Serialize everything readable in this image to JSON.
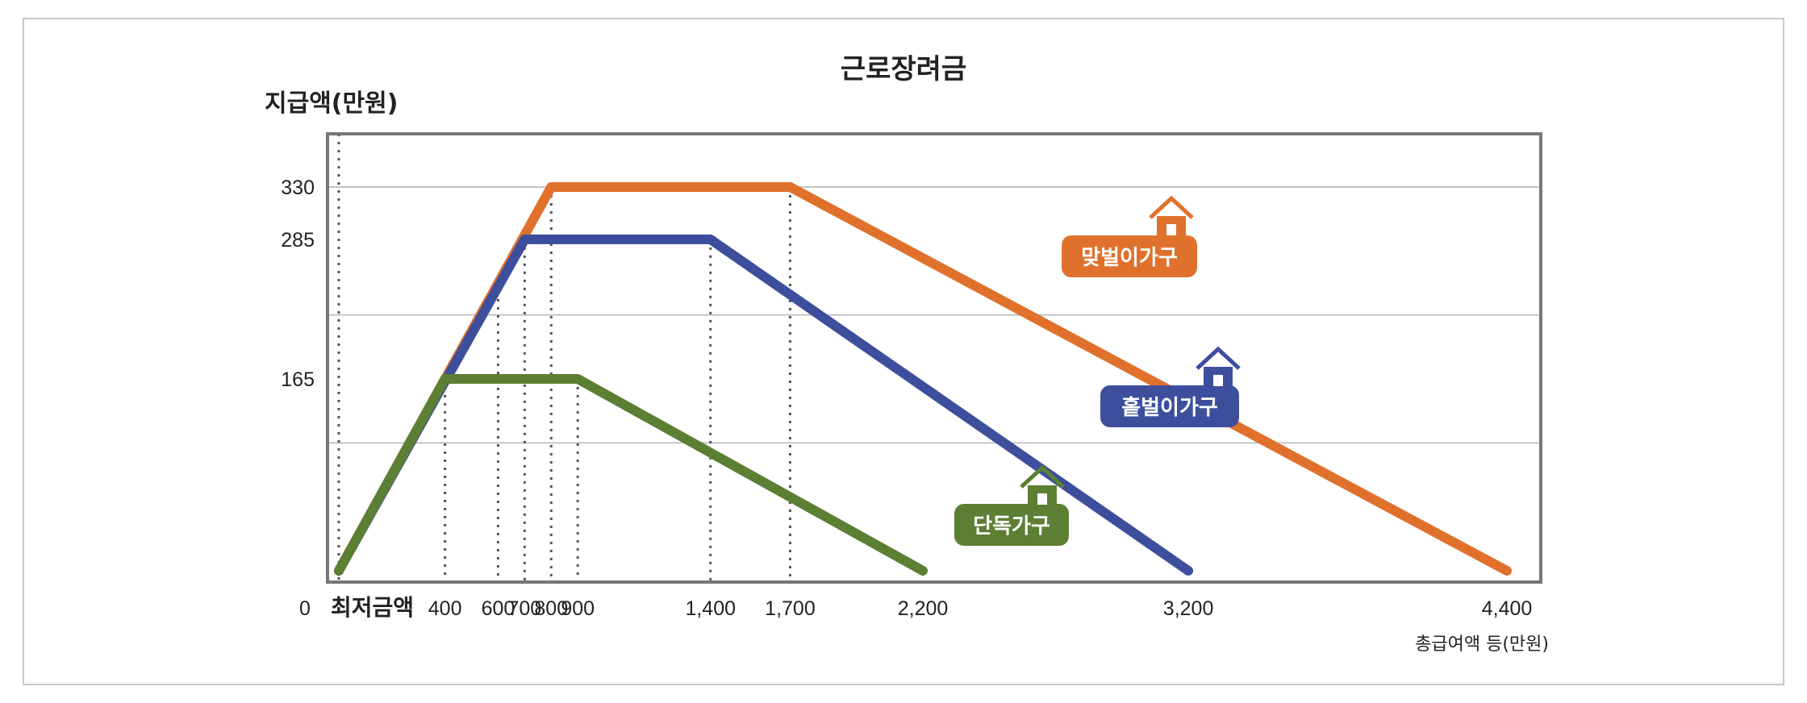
{
  "chart_data": {
    "type": "line",
    "title": "근로장려금",
    "ylabel": "지급액(만원)",
    "xlabel": "총급여액 등(만원)",
    "x_min_label": "최저금액",
    "y_zero_label": "0",
    "ylim": [
      0,
      375
    ],
    "y_ticks": [
      330,
      285,
      165
    ],
    "x_ticks": [
      "400",
      "600",
      "700",
      "800",
      "900",
      "1,400",
      "1,700",
      "2,200",
      "3,200",
      "4,400"
    ],
    "grid": true,
    "series": [
      {
        "name": "맞벌이가구",
        "color": "#e0712d",
        "points": [
          [
            0,
            0
          ],
          [
            800,
            330
          ],
          [
            1700,
            330
          ],
          [
            4400,
            0
          ]
        ]
      },
      {
        "name": "홑벌이가구",
        "color": "#3d4f9c",
        "points": [
          [
            0,
            0
          ],
          [
            700,
            285
          ],
          [
            1400,
            285
          ],
          [
            3200,
            0
          ]
        ]
      },
      {
        "name": "단독가구",
        "color": "#5c7f33",
        "points": [
          [
            0,
            0
          ],
          [
            400,
            165
          ],
          [
            900,
            165
          ],
          [
            2200,
            0
          ]
        ]
      }
    ]
  }
}
